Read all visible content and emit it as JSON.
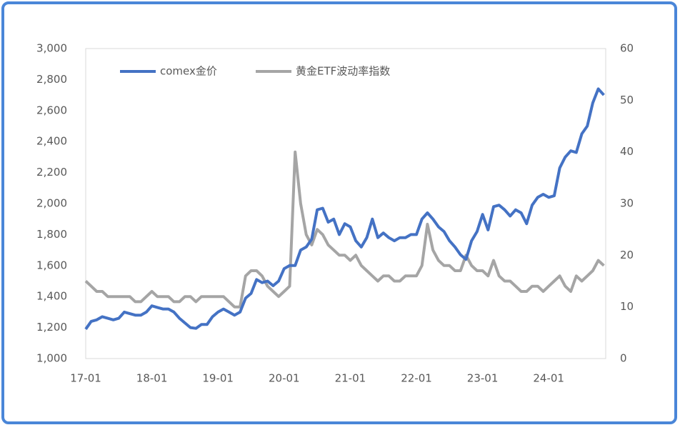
{
  "chart_data": {
    "type": "line",
    "categories": [
      "17-01",
      null,
      null,
      null,
      null,
      null,
      null,
      null,
      null,
      null,
      null,
      null,
      "18-01",
      null,
      null,
      null,
      null,
      null,
      null,
      null,
      null,
      null,
      null,
      null,
      "19-01",
      null,
      null,
      null,
      null,
      null,
      null,
      null,
      null,
      null,
      null,
      null,
      "20-01",
      null,
      null,
      null,
      null,
      null,
      null,
      null,
      null,
      null,
      null,
      null,
      "21-01",
      null,
      null,
      null,
      null,
      null,
      null,
      null,
      null,
      null,
      null,
      null,
      "22-01",
      null,
      null,
      null,
      null,
      null,
      null,
      null,
      null,
      null,
      null,
      null,
      "23-01",
      null,
      null,
      null,
      null,
      null,
      null,
      null,
      null,
      null,
      null,
      null,
      "24-01",
      null,
      null,
      null,
      null,
      null,
      null,
      null,
      null,
      null,
      null
    ],
    "series": [
      {
        "name": "comex金价",
        "color": "#4472c4",
        "values": [
          1190,
          1240,
          1250,
          1270,
          1260,
          1250,
          1260,
          1300,
          1290,
          1280,
          1280,
          1300,
          1340,
          1330,
          1320,
          1320,
          1300,
          1260,
          1230,
          1200,
          1195,
          1220,
          1220,
          1270,
          1300,
          1320,
          1300,
          1280,
          1300,
          1390,
          1420,
          1510,
          1490,
          1500,
          1470,
          1500,
          1580,
          1600,
          1600,
          1700,
          1720,
          1770,
          1960,
          1970,
          1880,
          1900,
          1800,
          1870,
          1850,
          1760,
          1720,
          1780,
          1900,
          1780,
          1810,
          1780,
          1760,
          1780,
          1780,
          1800,
          1800,
          1900,
          1940,
          1900,
          1850,
          1820,
          1760,
          1720,
          1670,
          1640,
          1760,
          1820,
          1930,
          1830,
          1980,
          1990,
          1960,
          1920,
          1960,
          1940,
          1870,
          1990,
          2040,
          2060,
          2040,
          2050,
          2230,
          2300,
          2340,
          2330,
          2450,
          2500,
          2650,
          2740,
          2700
        ]
      },
      {
        "name": "黄金ETF波动率指数",
        "color": "#a5a5a5",
        "axis": "y2",
        "values": [
          15,
          14,
          13,
          13,
          12,
          12,
          12,
          12,
          12,
          11,
          11,
          12,
          13,
          12,
          12,
          12,
          11,
          11,
          12,
          12,
          11,
          12,
          12,
          12,
          12,
          12,
          11,
          10,
          10,
          16,
          17,
          17,
          16,
          14,
          13,
          12,
          13,
          14,
          40,
          30,
          24,
          22,
          25,
          24,
          22,
          21,
          20,
          20,
          19,
          20,
          18,
          17,
          16,
          15,
          16,
          16,
          15,
          15,
          16,
          16,
          16,
          18,
          26,
          21,
          19,
          18,
          18,
          17,
          17,
          20,
          18,
          17,
          17,
          16,
          19,
          16,
          15,
          15,
          14,
          13,
          13,
          14,
          14,
          13,
          14,
          15,
          16,
          14,
          13,
          16,
          15,
          16,
          17,
          19,
          18
        ]
      }
    ],
    "ylim": [
      1000,
      3000
    ],
    "yticks": [
      {
        "value": 1000,
        "label": "1,000"
      },
      {
        "value": 1200,
        "label": "1,200"
      },
      {
        "value": 1400,
        "label": "1,400"
      },
      {
        "value": 1600,
        "label": "1,600"
      },
      {
        "value": 1800,
        "label": "1,800"
      },
      {
        "value": 2000,
        "label": "2,000"
      },
      {
        "value": 2200,
        "label": "2,200"
      },
      {
        "value": 2400,
        "label": "2,400"
      },
      {
        "value": 2600,
        "label": "2,600"
      },
      {
        "value": 2800,
        "label": "2,800"
      },
      {
        "value": 3000,
        "label": "3,000"
      }
    ],
    "y2lim": [
      0,
      60
    ],
    "y2ticks": [
      0,
      10,
      20,
      30,
      40,
      50,
      60
    ]
  }
}
